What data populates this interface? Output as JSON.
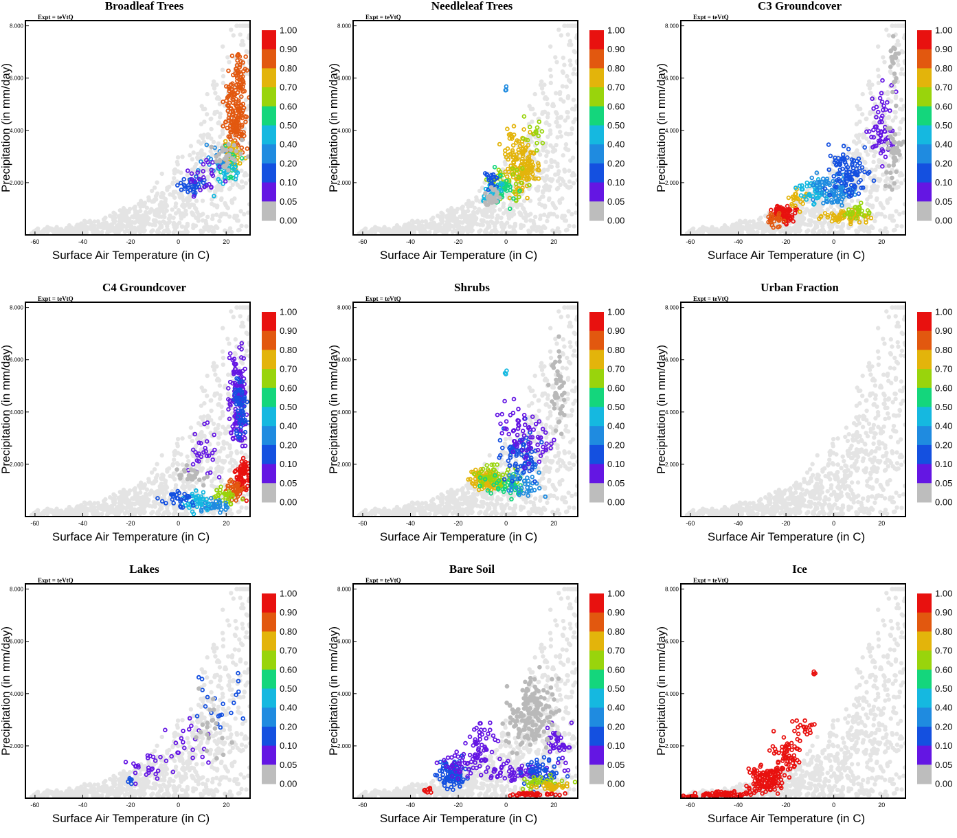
{
  "expt_label": "Expt = teVtQ",
  "xlabel": "Surface Air Temperature (in C)",
  "ylabel": "Precipitation (in mm/day)",
  "x_ticks": [
    "-60",
    "-40",
    "-20",
    "0",
    "20"
  ],
  "y_ticks": [
    "8.000",
    "6.000",
    "4.000",
    "2.000"
  ],
  "colorbar": {
    "labels": [
      "1.00",
      "0.90",
      "0.80",
      "0.70",
      "0.60",
      "0.50",
      "0.40",
      "0.20",
      "0.10",
      "0.05",
      "0.00"
    ],
    "colors": [
      "#e8110f",
      "#e2580f",
      "#e3b40b",
      "#99d40c",
      "#14d67c",
      "#15b8e0",
      "#1f8be0",
      "#1450e0",
      "#6416e3",
      "#bdbdbd"
    ]
  },
  "chart_data": [
    {
      "type": "scatter",
      "title": "Broadleaf Trees",
      "xlim": [
        -64,
        30
      ],
      "ylim": [
        0,
        8.2
      ],
      "pattern": "broadleaf"
    },
    {
      "type": "scatter",
      "title": "Needleleaf Trees",
      "xlim": [
        -64,
        30
      ],
      "ylim": [
        0,
        8.2
      ],
      "pattern": "needleleaf"
    },
    {
      "type": "scatter",
      "title": "C3 Groundcover",
      "xlim": [
        -64,
        30
      ],
      "ylim": [
        0,
        8.2
      ],
      "pattern": "c3"
    },
    {
      "type": "scatter",
      "title": "C4 Groundcover",
      "xlim": [
        -64,
        30
      ],
      "ylim": [
        0,
        8.2
      ],
      "pattern": "c4"
    },
    {
      "type": "scatter",
      "title": "Shrubs",
      "xlim": [
        -64,
        30
      ],
      "ylim": [
        0,
        8.2
      ],
      "pattern": "shrubs"
    },
    {
      "type": "scatter",
      "title": "Urban Fraction",
      "xlim": [
        -64,
        30
      ],
      "ylim": [
        0,
        8.2
      ],
      "pattern": "urban"
    },
    {
      "type": "scatter",
      "title": "Lakes",
      "xlim": [
        -64,
        30
      ],
      "ylim": [
        0,
        8.2
      ],
      "pattern": "lakes"
    },
    {
      "type": "scatter",
      "title": "Bare Soil",
      "xlim": [
        -64,
        30
      ],
      "ylim": [
        0,
        8.2
      ],
      "pattern": "baresoil"
    },
    {
      "type": "scatter",
      "title": "Ice",
      "xlim": [
        -64,
        30
      ],
      "ylim": [
        0,
        8.2
      ],
      "pattern": "ice"
    }
  ]
}
